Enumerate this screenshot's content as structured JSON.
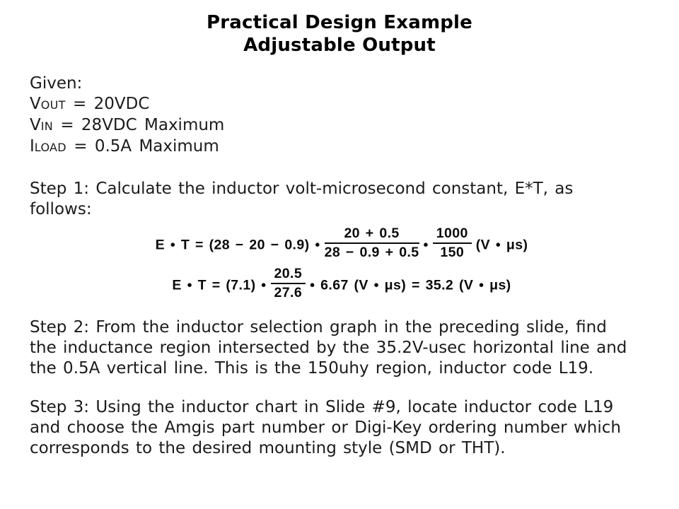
{
  "title": {
    "line1": "Practical Design Example",
    "line2": "Adjustable Output"
  },
  "given": {
    "heading": "Given:",
    "items": [
      {
        "sym": "V",
        "sub": "OUT",
        "rest": " = 20VDC"
      },
      {
        "sym": "V",
        "sub": "IN",
        "rest": " = 28VDC Maximum"
      },
      {
        "sym": "I",
        "sub": "LOAD",
        "rest": " = 0.5A Maximum"
      }
    ]
  },
  "steps": {
    "step1": [
      "Step 1: Calculate the inductor volt-microsecond constant, E*T, as",
      "follows:"
    ],
    "step2": [
      "Step 2: From the inductor selection graph in the preceding slide, find",
      "the inductance region intersected by the 35.2V-usec horizontal line and",
      "the 0.5A vertical line. This is the 150uhy region, inductor code L19."
    ],
    "step3": [
      "Step 3: Using the inductor chart in Slide #9, locate inductor code L19",
      "and choose the Amgis part number or Digi-Key ordering number which",
      "corresponds to the desired mounting style (SMD or THT)."
    ]
  },
  "equations": {
    "eq1": {
      "lhs": "E • T = (28 − 20 − 0.9) •",
      "frac1": {
        "num": "20 + 0.5",
        "den": "28 − 0.9 + 0.5"
      },
      "dot": "•",
      "frac2": {
        "num": "1000",
        "den": "150"
      },
      "tail": "(V • μs)"
    },
    "eq2": {
      "lhs": "E • T = (7.1) •",
      "frac": {
        "num": "20.5",
        "den": "27.6"
      },
      "tail": "• 6.67 (V • μs) = 35.2 (V • μs)"
    }
  }
}
